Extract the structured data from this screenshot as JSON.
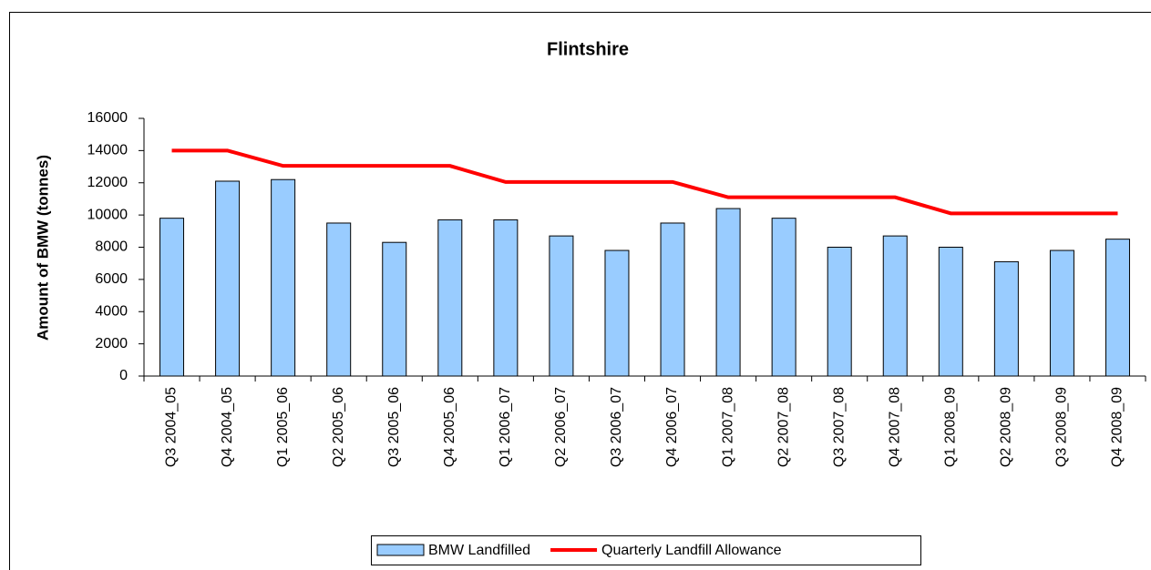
{
  "chart_data": {
    "type": "bar-line",
    "title": "Flintshire",
    "y_label": "Amount of BMW (tonnes)",
    "categories": [
      "Q3 2004_05",
      "Q4 2004_05",
      "Q1 2005_06",
      "Q2 2005_06",
      "Q3 2005_06",
      "Q4 2005_06",
      "Q1 2006_07",
      "Q2 2006_07",
      "Q3 2006_07",
      "Q4 2006_07",
      "Q1 2007_08",
      "Q2 2007_08",
      "Q3 2007_08",
      "Q4 2007_08",
      "Q1 2008_09",
      "Q2 2008_09",
      "Q3 2008_09",
      "Q4 2008_09"
    ],
    "series": [
      {
        "name": "BMW Landfilled",
        "type": "bar",
        "color": "#99ccff",
        "values": [
          9800,
          12100,
          12200,
          9500,
          8300,
          9700,
          9700,
          8700,
          7800,
          9500,
          10400,
          9800,
          8000,
          8700,
          8000,
          7100,
          7800,
          8500
        ]
      },
      {
        "name": "Quarterly Landfill Allowance",
        "type": "line",
        "color": "#ff0000",
        "values": [
          14000,
          14000,
          13050,
          13050,
          13050,
          13050,
          12050,
          12050,
          12050,
          12050,
          11100,
          11100,
          11100,
          11100,
          10100,
          10100,
          10100,
          10100
        ]
      }
    ],
    "ylim": [
      0,
      16000
    ],
    "yticks": [
      0,
      2000,
      4000,
      6000,
      8000,
      10000,
      12000,
      14000,
      16000
    ],
    "legend": "bottom"
  }
}
